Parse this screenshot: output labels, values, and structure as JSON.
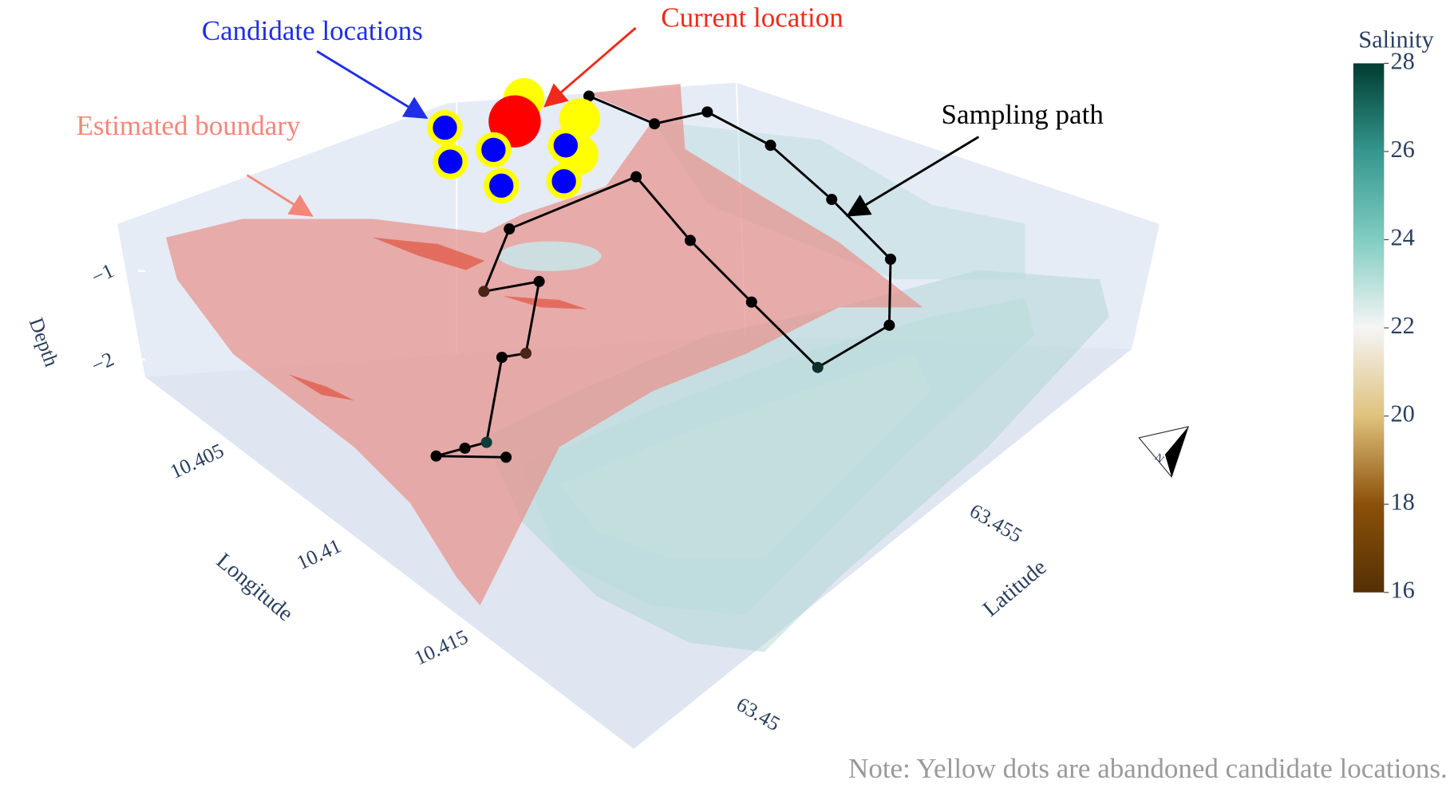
{
  "chart_data": {
    "type": "scatter3d",
    "annotations": {
      "candidate": "Candidate locations",
      "current": "Current location",
      "boundary": "Estimated boundary",
      "path": "Sampling path"
    },
    "note": "Note: Yellow dots are abandoned candidate locations.",
    "xaxis_title": "Longitude",
    "yaxis_title": "Latitude",
    "zaxis_title": "Depth",
    "xlim": [
      10.3995,
      10.4195
    ],
    "xticks": [
      10.405,
      10.41,
      10.415
    ],
    "ylim": [
      63.4475,
      63.458
    ],
    "yticks": [
      63.45,
      63.455
    ],
    "zlim": [
      -2.2,
      -0.5
    ],
    "zticks": [
      {
        "value": -1,
        "label": "−1"
      },
      {
        "value": -2,
        "label": "−2"
      }
    ],
    "series": [
      {
        "mode": "lines+markers",
        "color": "#000000",
        "marker_colors": [
          "#000000",
          "#000000",
          "#000000",
          "#0d3b36",
          "#000000",
          "#4a2416",
          "#000000",
          "#4a2416",
          "#000000",
          "#000000",
          "#000000",
          "#000000",
          "#0b2f2b",
          "#000000",
          "#000000",
          "#000000",
          "#000000",
          "#000000",
          "#000000",
          "#000000"
        ],
        "x": [
          10.4131,
          10.4116,
          10.412,
          10.4123,
          10.4104,
          10.4108,
          10.4092,
          10.4083,
          10.4072,
          10.4085,
          10.4113,
          10.4142,
          10.4173,
          10.4177,
          10.416,
          10.4132,
          10.4105,
          10.4083,
          10.4075,
          10.4054
        ],
        "y": [
          63.4481,
          63.4474,
          63.4478,
          63.4481,
          63.4494,
          63.4497,
          63.4508,
          63.4501,
          63.4512,
          63.4532,
          63.4529,
          63.4527,
          63.4525,
          63.4538,
          63.4547,
          63.4549,
          63.455,
          63.4548,
          63.4541,
          63.4538
        ],
        "z": [
          -0.5,
          -0.5,
          -0.5,
          -0.5,
          -0.5,
          -0.5,
          -0.5,
          -0.5,
          -0.5,
          -0.5,
          -0.5,
          -0.5,
          -0.5,
          -0.5,
          -0.5,
          -0.5,
          -0.5,
          -0.5,
          -0.5,
          -0.5
        ]
      },
      {
        "mode": "markers",
        "role": "abandoned",
        "color": "#ffff00",
        "x": [
          10.4041,
          10.4058,
          10.4067
        ],
        "y": [
          63.4531,
          63.4534,
          63.4529
        ],
        "z": [
          -0.5,
          -0.5,
          -0.5
        ]
      },
      {
        "mode": "markers",
        "role": "current",
        "color": "#ff0000",
        "x": [
          10.4045
        ],
        "y": [
          63.4527
        ],
        "z": [
          -0.5
        ]
      },
      {
        "mode": "markers",
        "role": "candidate",
        "color": "#0000ff",
        "line_color": "#ffff00",
        "x": [
          10.4032,
          10.4042,
          10.4048,
          10.4059,
          10.4062,
          10.4071
        ],
        "y": [
          63.4519,
          63.4515,
          63.4521,
          63.4517,
          63.4529,
          63.4524
        ],
        "z": [
          -0.5,
          -0.5,
          -0.5,
          -0.5,
          -0.5,
          -0.5
        ]
      }
    ],
    "colorbar": {
      "title": "Salinity",
      "lim": [
        16,
        28
      ],
      "ticks": [
        16,
        18,
        20,
        22,
        24,
        26,
        28
      ],
      "colors": [
        "#543005",
        "#8c510a",
        "#dfc27d",
        "#f5f5f5",
        "#80cdc1",
        "#35978f",
        "#003c30"
      ]
    }
  }
}
